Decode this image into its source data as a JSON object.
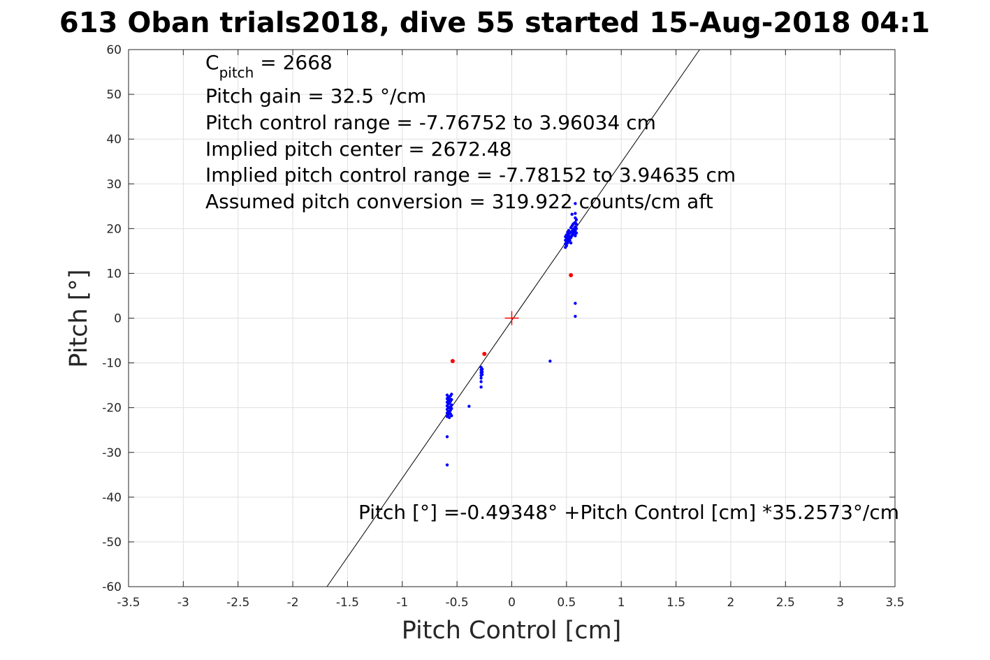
{
  "chart_data": {
    "type": "scatter",
    "title": "613 Oban trials2018, dive 55 started 15-Aug-2018 04:1",
    "xlabel": "Pitch Control [cm]",
    "ylabel": "Pitch [°]",
    "xlim": [
      -3.5,
      3.5
    ],
    "ylim": [
      -60,
      60
    ],
    "xticks": [
      "-3.5",
      "-3",
      "-2.5",
      "-2",
      "-1.5",
      "-1",
      "-0.5",
      "0",
      "0.5",
      "1",
      "1.5",
      "2",
      "2.5",
      "3",
      "3.5"
    ],
    "yticks": [
      "60",
      "50",
      "40",
      "30",
      "20",
      "10",
      "0",
      "-10",
      "-20",
      "-30",
      "-40",
      "-50",
      "-60"
    ],
    "grid": true,
    "annotations": {
      "c_pitch_symbol": "C",
      "c_pitch_sub": "pitch",
      "c_pitch_value": " = 2668",
      "line2": "Pitch gain = 32.5 °/cm",
      "line3": "Pitch control range = -7.76752 to 3.96034 cm",
      "line4": "Implied pitch center = 2672.48",
      "line5": "Implied pitch control range = -7.78152 to 3.94635 cm",
      "line6": "Assumed pitch conversion = 319.922 counts/cm aft",
      "fit_equation": "Pitch [°] =-0.49348° +Pitch Control [cm] *35.2573°/cm"
    },
    "fit_line": {
      "intercept": -0.49348,
      "slope": 35.2573,
      "color": "#000000"
    },
    "center_marker": {
      "x": 0,
      "y": 0,
      "color": "#ff0000"
    },
    "series": [
      {
        "color": "#0000ff",
        "points": [
          [
            -0.59,
            -17.2
          ],
          [
            -0.59,
            -18.0
          ],
          [
            -0.59,
            -18.8
          ],
          [
            -0.59,
            -19.6
          ],
          [
            -0.59,
            -20.4
          ],
          [
            -0.59,
            -21.2
          ],
          [
            -0.59,
            -22.0
          ],
          [
            -0.58,
            -17.6
          ],
          [
            -0.58,
            -18.4
          ],
          [
            -0.58,
            -19.2
          ],
          [
            -0.58,
            -20.0
          ],
          [
            -0.58,
            -20.8
          ],
          [
            -0.58,
            -21.6
          ],
          [
            -0.57,
            -18.0
          ],
          [
            -0.57,
            -19.0
          ],
          [
            -0.57,
            -20.0
          ],
          [
            -0.57,
            -21.0
          ],
          [
            -0.57,
            -22.2
          ],
          [
            -0.56,
            -17.4
          ],
          [
            -0.56,
            -18.6
          ],
          [
            -0.56,
            -19.8
          ],
          [
            -0.56,
            -20.6
          ],
          [
            -0.56,
            -21.4
          ],
          [
            -0.55,
            -17.0
          ],
          [
            -0.55,
            -18.2
          ],
          [
            -0.55,
            -19.4
          ],
          [
            -0.55,
            -20.2
          ],
          [
            -0.55,
            -21.8
          ],
          [
            -0.59,
            -26.5
          ],
          [
            -0.59,
            -32.8
          ],
          [
            -0.39,
            -19.7
          ],
          [
            -0.28,
            -11.0
          ],
          [
            -0.28,
            -11.6
          ],
          [
            -0.28,
            -12.2
          ],
          [
            -0.28,
            -12.8
          ],
          [
            -0.28,
            -13.4
          ],
          [
            -0.28,
            -14.2
          ],
          [
            -0.28,
            -15.4
          ],
          [
            -0.27,
            -11.4
          ],
          [
            -0.27,
            -12.0
          ],
          [
            -0.27,
            -12.6
          ],
          [
            0.35,
            -9.6
          ],
          [
            0.58,
            3.3
          ],
          [
            0.58,
            0.4
          ],
          [
            0.49,
            15.8
          ],
          [
            0.49,
            16.6
          ],
          [
            0.49,
            17.4
          ],
          [
            0.49,
            18.2
          ],
          [
            0.5,
            16.2
          ],
          [
            0.5,
            17.0
          ],
          [
            0.5,
            17.8
          ],
          [
            0.5,
            18.6
          ],
          [
            0.51,
            16.8
          ],
          [
            0.51,
            17.6
          ],
          [
            0.51,
            18.4
          ],
          [
            0.51,
            19.2
          ],
          [
            0.52,
            17.2
          ],
          [
            0.52,
            18.0
          ],
          [
            0.52,
            18.8
          ],
          [
            0.52,
            19.6
          ],
          [
            0.53,
            17.4
          ],
          [
            0.53,
            18.2
          ],
          [
            0.53,
            19.0
          ],
          [
            0.54,
            16.8
          ],
          [
            0.54,
            18.0
          ],
          [
            0.54,
            19.2
          ],
          [
            0.54,
            20.2
          ],
          [
            0.55,
            18.4
          ],
          [
            0.55,
            19.4
          ],
          [
            0.55,
            20.6
          ],
          [
            0.56,
            18.8
          ],
          [
            0.56,
            19.8
          ],
          [
            0.56,
            21.0
          ],
          [
            0.57,
            19.0
          ],
          [
            0.57,
            20.0
          ],
          [
            0.57,
            21.2
          ],
          [
            0.58,
            18.4
          ],
          [
            0.58,
            19.4
          ],
          [
            0.58,
            20.4
          ],
          [
            0.58,
            21.4
          ],
          [
            0.58,
            22.4
          ],
          [
            0.58,
            23.4
          ],
          [
            0.58,
            25.6
          ],
          [
            0.59,
            19.0
          ],
          [
            0.59,
            20.0
          ],
          [
            0.59,
            21.0
          ],
          [
            0.59,
            22.0
          ],
          [
            0.55,
            23.2
          ]
        ]
      },
      {
        "color": "#ff0000",
        "points": [
          [
            -0.54,
            -9.6
          ],
          [
            -0.25,
            -8.0
          ],
          [
            0.54,
            9.6
          ]
        ]
      }
    ]
  }
}
